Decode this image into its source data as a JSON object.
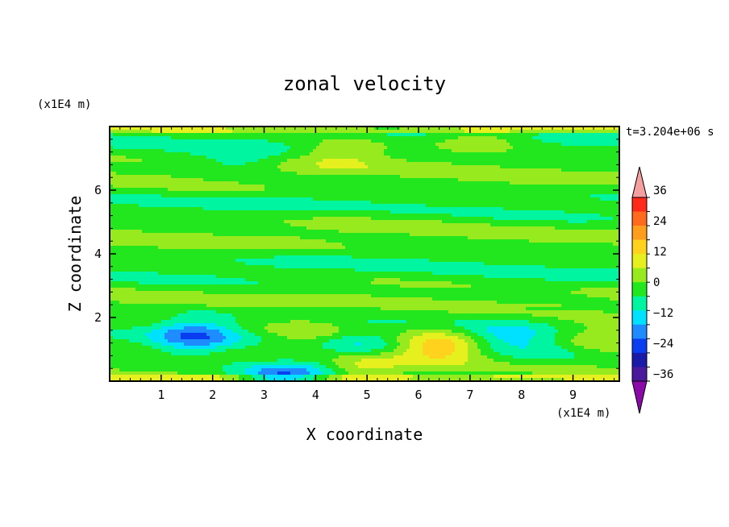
{
  "chart_data": {
    "type": "heatmap",
    "title": "zonal velocity",
    "xlabel": "X coordinate",
    "ylabel": "Z coordinate",
    "x_unit": "(x1E4 m)",
    "y_unit": "(x1E4 m)",
    "time_label": "t=3.204e+06 s",
    "xlim": [
      0,
      9.9
    ],
    "ylim": [
      0,
      8
    ],
    "x_ticks": [
      1,
      2,
      3,
      4,
      5,
      6,
      7,
      8,
      9
    ],
    "y_ticks": [
      2,
      4,
      6
    ],
    "colorbar": {
      "levels": [
        -42,
        -36,
        -30,
        -24,
        -18,
        -12,
        -6,
        0,
        6,
        12,
        18,
        24,
        30,
        36,
        42
      ],
      "tick_labels": [
        "36",
        "24",
        "12",
        "0",
        "−12",
        "−24",
        "−36"
      ],
      "tick_values": [
        36,
        24,
        12,
        0,
        -12,
        -24,
        -36
      ],
      "colors_low_to_high": [
        "#8a0aa8",
        "#4a1a9c",
        "#1a1aa8",
        "#0a3cf0",
        "#1e8cff",
        "#00e0ff",
        "#00f5a0",
        "#22e61e",
        "#96ea1e",
        "#e6f01e",
        "#ffd21e",
        "#ff9e1e",
        "#ff6a1e",
        "#ff2a1a",
        "#f4a0a0"
      ]
    },
    "field_features": [
      {
        "x": 1.6,
        "z": 1.2,
        "value": -10
      },
      {
        "x": 1.7,
        "z": 1.6,
        "value": -14
      },
      {
        "x": 3.3,
        "z": 0.1,
        "value": -22
      },
      {
        "x": 4.2,
        "z": 0.4,
        "value": -8
      },
      {
        "x": 4.8,
        "z": 1.2,
        "value": -10
      },
      {
        "x": 3.9,
        "z": 1.5,
        "value": 9
      },
      {
        "x": 6.5,
        "z": 1.2,
        "value": 8
      },
      {
        "x": 6.4,
        "z": 1.0,
        "value": 14
      },
      {
        "x": 4.8,
        "z": 0.4,
        "value": 13
      },
      {
        "x": 7.6,
        "z": 1.4,
        "value": -12
      },
      {
        "x": 9.5,
        "z": 1.4,
        "value": 10
      },
      {
        "x": 8.5,
        "z": 1.1,
        "value": -6
      },
      {
        "x": 2.5,
        "z": 6.9,
        "value": -8
      },
      {
        "x": 4.5,
        "z": 7.2,
        "value": 9
      },
      {
        "x": 7.2,
        "z": 7.6,
        "value": 9
      }
    ]
  }
}
